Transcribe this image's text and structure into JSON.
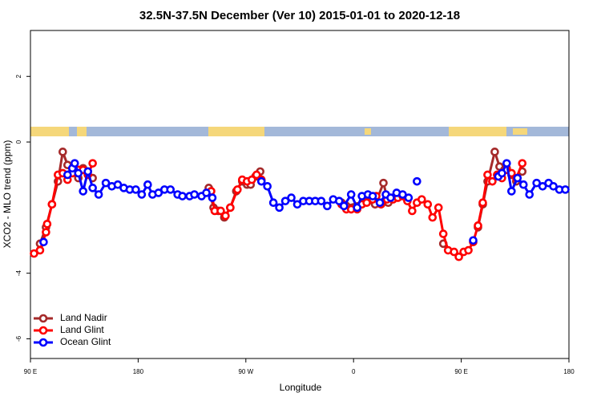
{
  "chart_data": {
    "type": "line",
    "title": "32.5N-37.5N December (Ver 10)   2015-01-01 to 2020-12-18",
    "x_label": "Longitude",
    "y_label": "XCO2 - MLO trend (ppm)",
    "xlim": [
      90,
      540
    ],
    "xticks": [
      {
        "value": 90,
        "label": "90 E"
      },
      180,
      {
        "value": 270,
        "label": "90 W"
      },
      {
        "value": 360,
        "label": "0"
      },
      {
        "value": 450,
        "label": "90 E"
      },
      {
        "value": 540,
        "label": "180"
      }
    ],
    "ylim": [
      -6.6,
      3.4
    ],
    "yticks": [
      -6,
      -4,
      0,
      2
    ],
    "legend": "bottom-left",
    "series": [
      {
        "name": "Land Nadir",
        "color": "#a52a2a",
        "x": [
          98,
          103,
          108,
          113,
          117,
          121,
          125,
          130,
          134,
          138,
          142,
          null,
          239,
          243,
          247,
          252,
          257,
          262,
          267,
          271,
          274,
          278,
          282,
          null,
          350,
          354,
          371,
          378,
          385,
          389,
          393,
          null,
          435,
          null,
          464,
          468,
          472,
          478,
          482,
          486,
          488,
          492,
          496,
          501
        ],
        "values": [
          -3.1,
          -2.6,
          -1.9,
          -1.2,
          -0.3,
          -0.7,
          -0.9,
          -1.1,
          -0.8,
          -0.9,
          -1.1,
          null,
          -1.4,
          -2.0,
          -2.1,
          -2.3,
          -2.0,
          -1.5,
          -1.2,
          -1.3,
          -1.3,
          -1.05,
          -0.9,
          null,
          -1.85,
          -1.95,
          -1.8,
          -1.9,
          -1.25,
          -1.85,
          -1.7,
          null,
          -3.1,
          null,
          -2.6,
          -1.9,
          -1.2,
          -0.3,
          -0.75,
          -0.85,
          -0.8,
          -1.0,
          -1.2,
          -0.9
        ]
      },
      {
        "name": "Land Glint",
        "color": "#ff0000",
        "x": [
          93,
          98,
          103,
          104,
          108,
          113,
          117,
          121,
          125,
          130,
          134,
          138,
          142,
          null,
          241,
          244,
          249,
          253,
          257,
          263,
          267,
          271,
          275,
          279,
          283,
          null,
          350,
          354,
          358,
          363,
          367,
          371,
          376,
          379,
          383,
          388,
          393,
          397,
          401,
          405,
          409,
          413,
          417,
          422,
          426,
          431,
          435,
          439,
          444,
          448,
          452,
          456,
          460,
          464,
          468,
          472,
          476,
          480,
          484,
          488,
          492,
          496,
          501
        ],
        "values": [
          -3.4,
          -3.3,
          -2.75,
          -2.5,
          -1.9,
          -1.0,
          -0.95,
          -1.15,
          -0.95,
          -0.85,
          -0.85,
          -1.0,
          -0.65,
          null,
          -1.5,
          -2.1,
          -2.1,
          -2.25,
          -2.0,
          -1.45,
          -1.15,
          -1.2,
          -1.15,
          -1.0,
          -1.15,
          null,
          -1.9,
          -2.05,
          -2.05,
          -2.05,
          -1.9,
          -1.85,
          -1.75,
          -1.65,
          -1.9,
          -1.75,
          -1.75,
          -1.7,
          -1.65,
          -1.8,
          -2.1,
          -1.85,
          -1.75,
          -1.9,
          -2.3,
          -2.0,
          -2.8,
          -3.3,
          -3.35,
          -3.5,
          -3.35,
          -3.3,
          -3.05,
          -2.55,
          -1.85,
          -1.0,
          -1.2,
          -1.0,
          -1.1,
          -0.85,
          -0.95,
          -1.1,
          -0.65
        ]
      },
      {
        "name": "Ocean Glint",
        "color": "#0000ff",
        "x": [
          101,
          null,
          121,
          125,
          127,
          130,
          134,
          138,
          142,
          147,
          153,
          158,
          163,
          168,
          173,
          178,
          183,
          188,
          192,
          197,
          202,
          207,
          213,
          217,
          223,
          227,
          233,
          237,
          242,
          null,
          283,
          288,
          293,
          298,
          303,
          308,
          313,
          318,
          323,
          328,
          333,
          338,
          343,
          348,
          352,
          358,
          363,
          367,
          372,
          376,
          382,
          387,
          391,
          396,
          401,
          406,
          null,
          413,
          null,
          460,
          null,
          481,
          484,
          488,
          492,
          497,
          502,
          507,
          513,
          518,
          523,
          527,
          532,
          537
        ],
        "values": [
          -3.05,
          null,
          -1.0,
          -0.8,
          -0.65,
          -0.95,
          -1.5,
          -0.9,
          -1.4,
          -1.6,
          -1.25,
          -1.35,
          -1.3,
          -1.4,
          -1.45,
          -1.45,
          -1.6,
          -1.3,
          -1.6,
          -1.55,
          -1.45,
          -1.45,
          -1.6,
          -1.65,
          -1.65,
          -1.6,
          -1.65,
          -1.55,
          -1.7,
          null,
          -1.2,
          -1.35,
          -1.85,
          -2.0,
          -1.8,
          -1.7,
          -1.9,
          -1.8,
          -1.8,
          -1.8,
          -1.8,
          -1.95,
          -1.75,
          -1.8,
          -1.95,
          -1.6,
          -2.0,
          -1.65,
          -1.6,
          -1.65,
          -1.85,
          -1.6,
          -1.7,
          -1.55,
          -1.6,
          -1.7,
          null,
          -1.2,
          null,
          -3.0,
          null,
          -1.05,
          -0.95,
          -0.65,
          -1.5,
          -1.1,
          -1.3,
          -1.6,
          -1.25,
          -1.35,
          -1.25,
          -1.35,
          -1.45,
          -1.45
        ]
      }
    ]
  }
}
